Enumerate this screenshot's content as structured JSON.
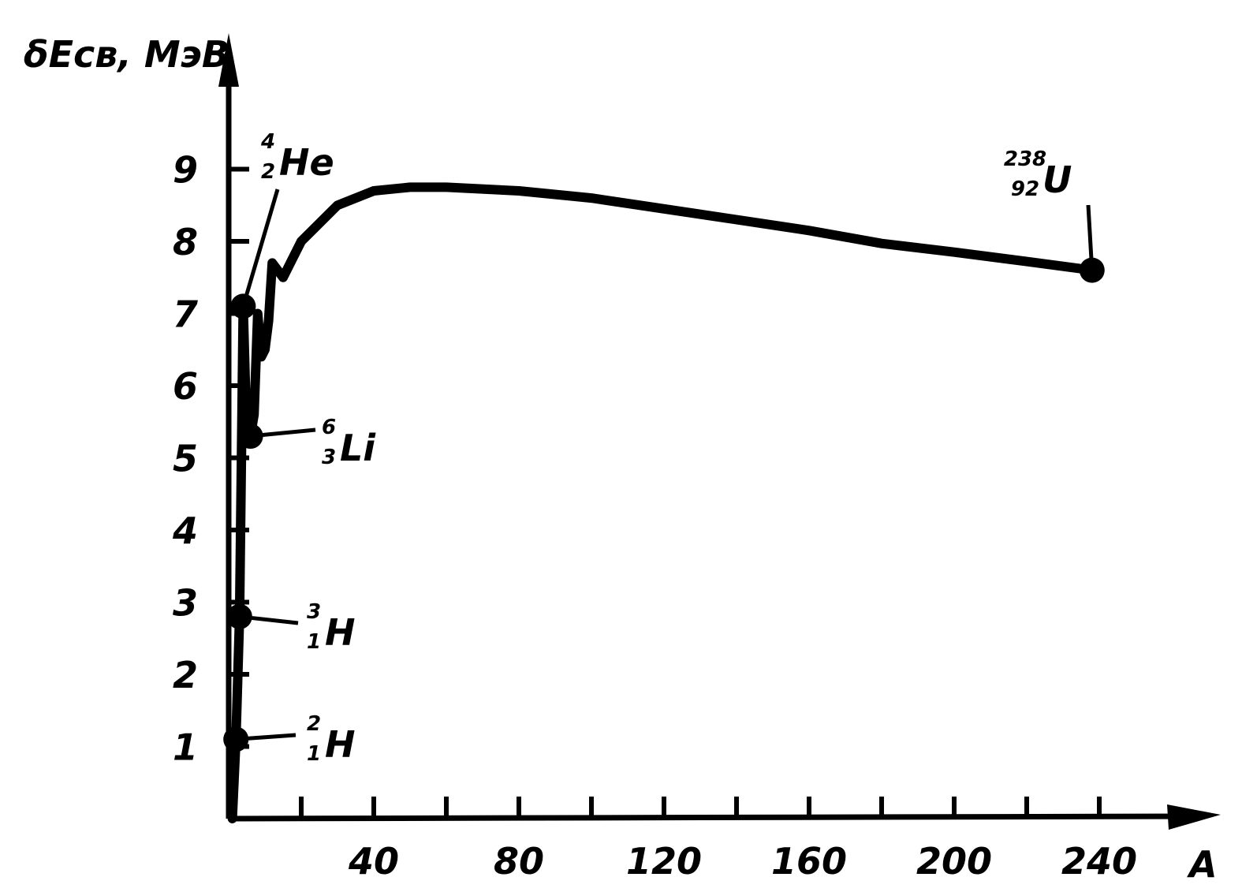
{
  "chart_data": {
    "type": "line",
    "title": "",
    "ylabel": "δEсв, МэВ",
    "xlabel": "A",
    "xlim": [
      0,
      260
    ],
    "ylim": [
      0,
      10
    ],
    "x_ticks": [
      40,
      80,
      120,
      160,
      200,
      240
    ],
    "y_ticks": [
      1,
      2,
      3,
      4,
      5,
      6,
      7,
      8,
      9
    ],
    "grid": false,
    "legend": "none",
    "series": [
      {
        "x": [
          1,
          2,
          3,
          3,
          4,
          4,
          5,
          6,
          6,
          7,
          8,
          8,
          9,
          10,
          11,
          12,
          15,
          20,
          30,
          40,
          50,
          60,
          80,
          100,
          120,
          140,
          160,
          180,
          200,
          220,
          238
        ],
        "y": [
          0,
          1.1,
          2.8,
          2.8,
          7.1,
          7.1,
          5.3,
          5.3,
          5.3,
          5.6,
          7.0,
          7.0,
          6.4,
          6.5,
          6.9,
          7.7,
          7.5,
          8.0,
          8.5,
          8.7,
          8.75,
          8.75,
          8.7,
          8.6,
          8.45,
          8.3,
          8.15,
          7.97,
          7.85,
          7.72,
          7.6
        ]
      }
    ],
    "points": [
      {
        "A": 2,
        "value": 1.1,
        "symbol": "H",
        "mass": "2",
        "charge": "1"
      },
      {
        "A": 3,
        "value": 2.8,
        "symbol": "H",
        "mass": "3",
        "charge": "1"
      },
      {
        "A": 4,
        "value": 7.1,
        "symbol": "He",
        "mass": "4",
        "charge": "2"
      },
      {
        "A": 6,
        "value": 5.3,
        "symbol": "Li",
        "mass": "6",
        "charge": "3"
      },
      {
        "A": 238,
        "value": 7.6,
        "symbol": "U",
        "mass": "238",
        "charge": "92"
      }
    ]
  }
}
